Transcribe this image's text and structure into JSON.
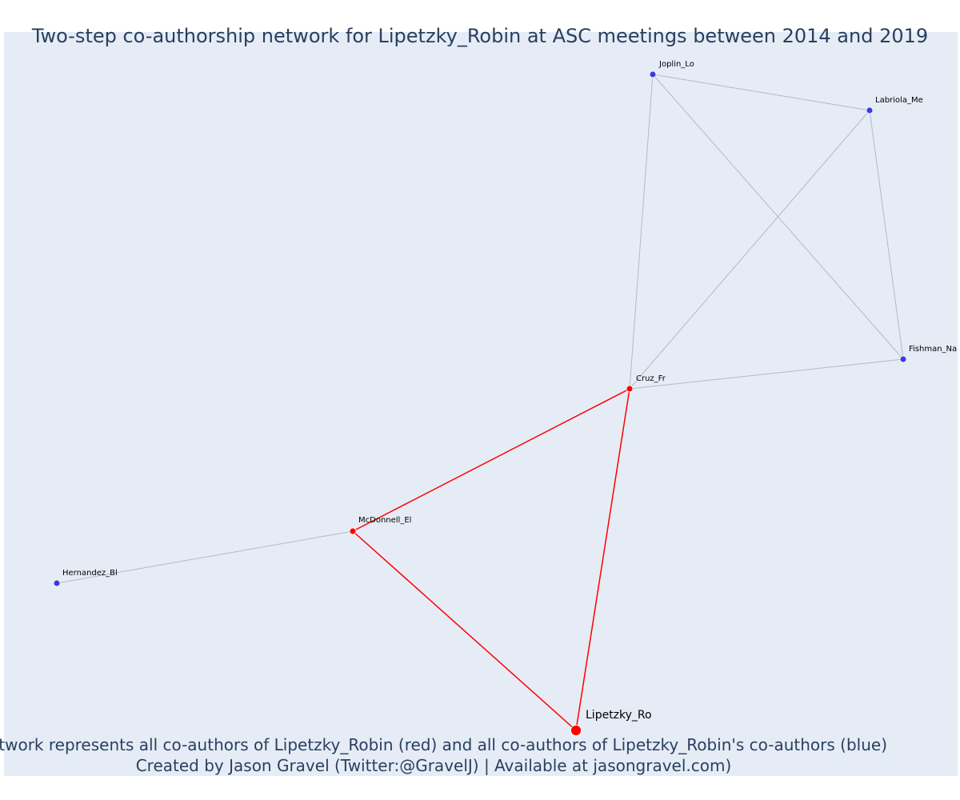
{
  "title": "Two-step co-authorship network for Lipetzky_Robin at ASC meetings between 2014 and 2019",
  "footer": {
    "line1": "Network represents all co-authors of Lipetzky_Robin (red) and all co-authors of Lipetzky_Robin's co-authors (blue)",
    "line2": "Created by Jason Gravel (Twitter:@GravelJ) | Available at jasongravel.com)"
  },
  "colors": {
    "background": "#e5ecf6",
    "first_step": "#ff0000",
    "second_step": "#3b3be6",
    "edge_first": "#ff0000",
    "edge_second": "#b4b8c8",
    "node_outline": "#ffffff"
  },
  "chart_data": {
    "type": "network",
    "nodes": [
      {
        "id": "Lipetzky_Ro",
        "group": "focal"
      },
      {
        "id": "Cruz_Fr",
        "group": "first"
      },
      {
        "id": "McDonnell_El",
        "group": "first"
      },
      {
        "id": "Joplin_Lo",
        "group": "second"
      },
      {
        "id": "Labriola_Me",
        "group": "second"
      },
      {
        "id": "Fishman_Na",
        "group": "second"
      },
      {
        "id": "Hernandez_Bl",
        "group": "second"
      }
    ],
    "edges": [
      {
        "source": "Lipetzky_Ro",
        "target": "Cruz_Fr",
        "type": "first"
      },
      {
        "source": "Lipetzky_Ro",
        "target": "McDonnell_El",
        "type": "first"
      },
      {
        "source": "McDonnell_El",
        "target": "Cruz_Fr",
        "type": "first"
      },
      {
        "source": "McDonnell_El",
        "target": "Hernandez_Bl",
        "type": "second"
      },
      {
        "source": "Cruz_Fr",
        "target": "Joplin_Lo",
        "type": "second"
      },
      {
        "source": "Cruz_Fr",
        "target": "Labriola_Me",
        "type": "second"
      },
      {
        "source": "Cruz_Fr",
        "target": "Fishman_Na",
        "type": "second"
      },
      {
        "source": "Joplin_Lo",
        "target": "Labriola_Me",
        "type": "second"
      },
      {
        "source": "Joplin_Lo",
        "target": "Fishman_Na",
        "type": "second"
      },
      {
        "source": "Labriola_Me",
        "target": "Fishman_Na",
        "type": "second"
      }
    ]
  }
}
